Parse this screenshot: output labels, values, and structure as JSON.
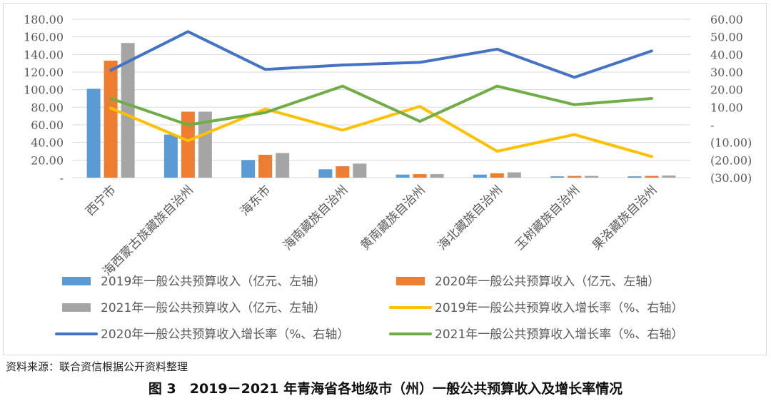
{
  "source_note": "资料来源：联合资信根据公开资料整理",
  "caption": "图 3　2019－2021 年青海省各地级市（州）一般公共预算收入及增长率情况",
  "chart_data": {
    "type": "bar",
    "categories": [
      "西宁市",
      "海西蒙古族藏族自治州",
      "海东市",
      "海南藏族自治州",
      "黄南藏族自治州",
      "海北藏族自治州",
      "玉树藏族自治州",
      "果洛藏族自治州"
    ],
    "y_left": {
      "range": [
        0,
        180
      ],
      "ticks": [
        "-",
        "20.00",
        "40.00",
        "60.00",
        "80.00",
        "100.00",
        "120.00",
        "140.00",
        "160.00",
        "180.00"
      ]
    },
    "y_right": {
      "range": [
        -30,
        60
      ],
      "ticks": [
        "(30.00)",
        "(20.00)",
        "(10.00)",
        "-",
        "10.00",
        "20.00",
        "30.00",
        "40.00",
        "50.00",
        "60.00"
      ]
    },
    "grid": true,
    "legend_position": "bottom",
    "bar_series": [
      {
        "name": "2019年一般公共预算收入（亿元、左轴）",
        "color": "#5b9bd5",
        "values": [
          101,
          49,
          20,
          9.5,
          3.5,
          3.5,
          1.5,
          1.5
        ]
      },
      {
        "name": "2020年一般公共预算收入（亿元、左轴）",
        "color": "#ed7d31",
        "values": [
          133,
          75,
          26,
          13,
          4,
          5,
          2,
          2
        ]
      },
      {
        "name": "2021年一般公共预算收入（亿元、左轴）",
        "color": "#a5a5a5",
        "values": [
          153,
          75,
          28,
          16,
          4,
          6,
          2,
          2.5
        ]
      }
    ],
    "line_series": [
      {
        "name": "2019年一般公共预算收入增长率（%、右轴）",
        "color": "#ffc000",
        "values": [
          9.5,
          -9,
          9,
          -3,
          10.5,
          -15,
          -5.5,
          -18
        ]
      },
      {
        "name": "2020年一般公共预算收入增长率（%、右轴）",
        "color": "#4472c4",
        "values": [
          31,
          53,
          31.5,
          34,
          35.5,
          43,
          27,
          42
        ]
      },
      {
        "name": "2021年一般公共预算收入增长率（%、右轴）",
        "color": "#70ad47",
        "values": [
          15,
          0,
          7,
          22,
          2,
          22,
          11.5,
          15
        ]
      }
    ]
  }
}
